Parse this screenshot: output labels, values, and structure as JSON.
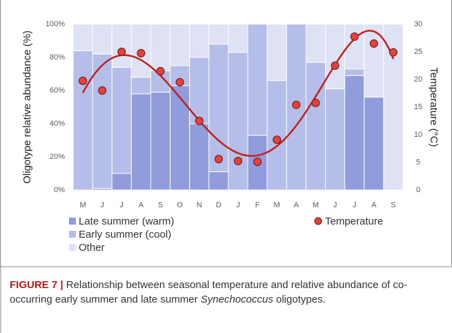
{
  "chart_data": {
    "type": "bar",
    "stacked": true,
    "categories": [
      "M",
      "J",
      "J",
      "A",
      "S",
      "O",
      "N",
      "D",
      "J",
      "F",
      "M",
      "A",
      "M",
      "J",
      "J",
      "A",
      "S"
    ],
    "series": [
      {
        "name": "Late summer (warm)",
        "color": "#909cdc",
        "values": [
          0,
          1,
          10,
          58,
          59,
          63,
          40,
          11,
          0,
          33,
          0,
          0,
          0,
          0,
          69,
          56,
          0
        ]
      },
      {
        "name": "Early summer (cool)",
        "color": "#b5bde9",
        "values": [
          84,
          81,
          64,
          10,
          13,
          12,
          40,
          77,
          83,
          67,
          66,
          100,
          77,
          61,
          4,
          0,
          0
        ]
      },
      {
        "name": "Other",
        "color": "#dfe2f5",
        "values": [
          16,
          18,
          26,
          32,
          28,
          25,
          20,
          12,
          17,
          0,
          34,
          0,
          23,
          39,
          27,
          44,
          100
        ]
      },
      {
        "name": "Temperature",
        "color": "#e8403a",
        "type": "scatter",
        "axis": "y2",
        "trendline": true,
        "trend_color": "#c0201b",
        "values": [
          19.75,
          18,
          25,
          24.75,
          21.5,
          19.5,
          12.5,
          5.6,
          5.25,
          5.1,
          9.1,
          15.4,
          15.75,
          22.5,
          27.75,
          26.5,
          24.9
        ]
      }
    ],
    "ylabel": "Oligotype relative abundance (%)",
    "y2label": "Temperature (°C)",
    "ylim": [
      0,
      100
    ],
    "yticks": [
      {
        "value": 0,
        "label": "0%"
      },
      {
        "value": 20,
        "label": "20%"
      },
      {
        "value": 40,
        "label": "40%"
      },
      {
        "value": 60,
        "label": "60%"
      },
      {
        "value": 80,
        "label": "80%"
      },
      {
        "value": 100,
        "label": "100%"
      }
    ],
    "y2lim": [
      0,
      30
    ],
    "y2ticks": [
      0,
      5,
      10,
      15,
      20,
      25,
      30
    ]
  },
  "caption": {
    "label": "FIGURE 7 |",
    "before": "Relationship between seasonal temperature and relative abundance of co-occurring early summer and late summer ",
    "italic": "Synechococcus",
    "after": " oligotypes."
  }
}
